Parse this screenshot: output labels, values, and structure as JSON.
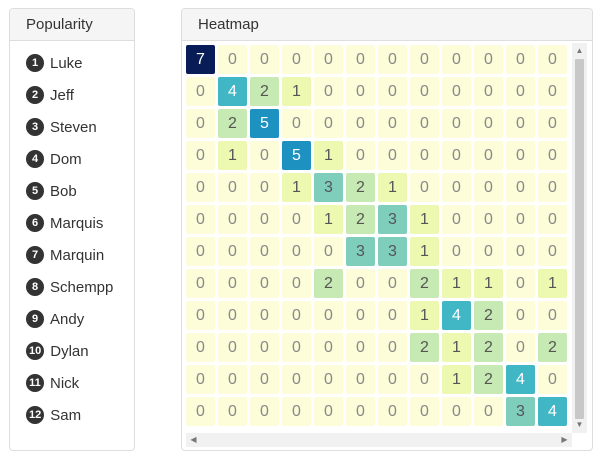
{
  "popularity": {
    "title": "Popularity",
    "items": [
      {
        "rank": "1",
        "name": "Luke"
      },
      {
        "rank": "2",
        "name": "Jeff"
      },
      {
        "rank": "3",
        "name": "Steven"
      },
      {
        "rank": "4",
        "name": "Dom"
      },
      {
        "rank": "5",
        "name": "Bob"
      },
      {
        "rank": "6",
        "name": "Marquis"
      },
      {
        "rank": "7",
        "name": "Marquin"
      },
      {
        "rank": "8",
        "name": "Schempp"
      },
      {
        "rank": "9",
        "name": "Andy"
      },
      {
        "rank": "10",
        "name": "Dylan"
      },
      {
        "rank": "11",
        "name": "Nick"
      },
      {
        "rank": "12",
        "name": "Sam"
      }
    ]
  },
  "heatmap": {
    "title": "Heatmap",
    "matrix": [
      [
        7,
        0,
        0,
        0,
        0,
        0,
        0,
        0,
        0,
        0,
        0,
        0
      ],
      [
        0,
        4,
        2,
        1,
        0,
        0,
        0,
        0,
        0,
        0,
        0,
        0
      ],
      [
        0,
        2,
        5,
        0,
        0,
        0,
        0,
        0,
        0,
        0,
        0,
        0
      ],
      [
        0,
        1,
        0,
        5,
        1,
        0,
        0,
        0,
        0,
        0,
        0,
        0
      ],
      [
        0,
        0,
        0,
        1,
        3,
        2,
        1,
        0,
        0,
        0,
        0,
        0
      ],
      [
        0,
        0,
        0,
        0,
        1,
        2,
        3,
        1,
        0,
        0,
        0,
        0
      ],
      [
        0,
        0,
        0,
        0,
        0,
        3,
        3,
        1,
        0,
        0,
        0,
        0
      ],
      [
        0,
        0,
        0,
        0,
        2,
        0,
        0,
        2,
        1,
        1,
        0,
        1
      ],
      [
        0,
        0,
        0,
        0,
        0,
        0,
        0,
        1,
        4,
        2,
        0,
        0
      ],
      [
        0,
        0,
        0,
        0,
        0,
        0,
        0,
        2,
        1,
        2,
        0,
        2
      ],
      [
        0,
        0,
        0,
        0,
        0,
        0,
        0,
        0,
        1,
        2,
        4,
        0
      ],
      [
        0,
        0,
        0,
        0,
        0,
        0,
        0,
        0,
        0,
        0,
        3,
        4
      ]
    ],
    "colors": {
      "0": "#fdfdda",
      "1": "#edf8b1",
      "2": "#c7e9b4",
      "3": "#7fcdbb",
      "4": "#41b6c4",
      "5": "#1d91c0",
      "7": "#081d58"
    }
  }
}
